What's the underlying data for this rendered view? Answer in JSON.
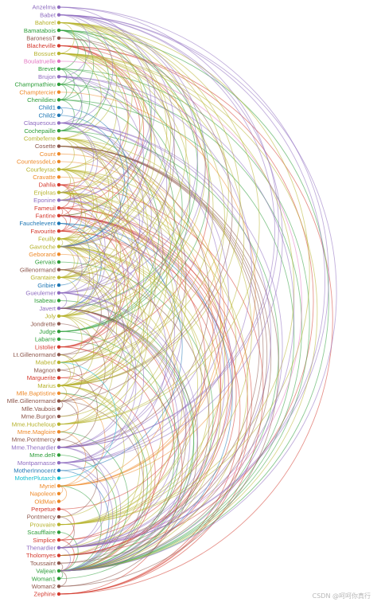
{
  "diagram": {
    "type": "arc-diagram",
    "group_colors": [
      "#8e6cc0",
      "#2e9e3a",
      "#b6b22c",
      "#d43a2e",
      "#ee8a2a",
      "#1f77b4",
      "#8c564b",
      "#e377c2",
      "#7f7f7f",
      "#17becf"
    ],
    "nodes": [
      {
        "name": "Anzelma",
        "group": 0
      },
      {
        "name": "Babet",
        "group": 0
      },
      {
        "name": "Bahorel",
        "group": 2
      },
      {
        "name": "Bamatabois",
        "group": 1
      },
      {
        "name": "BaronessT",
        "group": 6
      },
      {
        "name": "Blacheville",
        "group": 3
      },
      {
        "name": "Bossuet",
        "group": 2
      },
      {
        "name": "Boulatruelle",
        "group": 7
      },
      {
        "name": "Brevet",
        "group": 1
      },
      {
        "name": "Brujon",
        "group": 0
      },
      {
        "name": "Champmathieu",
        "group": 1
      },
      {
        "name": "Champtercier",
        "group": 4
      },
      {
        "name": "Chenildieu",
        "group": 1
      },
      {
        "name": "Child1",
        "group": 5
      },
      {
        "name": "Child2",
        "group": 5
      },
      {
        "name": "Claquesous",
        "group": 0
      },
      {
        "name": "Cochepaille",
        "group": 1
      },
      {
        "name": "Combeferre",
        "group": 2
      },
      {
        "name": "Cosette",
        "group": 6
      },
      {
        "name": "Count",
        "group": 4
      },
      {
        "name": "CountessdeLo",
        "group": 4
      },
      {
        "name": "Courfeyrac",
        "group": 2
      },
      {
        "name": "Cravatte",
        "group": 4
      },
      {
        "name": "Dahlia",
        "group": 3
      },
      {
        "name": "Enjolras",
        "group": 2
      },
      {
        "name": "Eponine",
        "group": 0
      },
      {
        "name": "Fameuil",
        "group": 3
      },
      {
        "name": "Fantine",
        "group": 3
      },
      {
        "name": "Fauchelevent",
        "group": 5
      },
      {
        "name": "Favourite",
        "group": 3
      },
      {
        "name": "Feuilly",
        "group": 2
      },
      {
        "name": "Gavroche",
        "group": 2
      },
      {
        "name": "Geborand",
        "group": 4
      },
      {
        "name": "Gervais",
        "group": 1
      },
      {
        "name": "Gillenormand",
        "group": 6
      },
      {
        "name": "Grantaire",
        "group": 2
      },
      {
        "name": "Gribier",
        "group": 5
      },
      {
        "name": "Gueulemer",
        "group": 0
      },
      {
        "name": "Isabeau",
        "group": 1
      },
      {
        "name": "Javert",
        "group": 0
      },
      {
        "name": "Joly",
        "group": 2
      },
      {
        "name": "Jondrette",
        "group": 6
      },
      {
        "name": "Judge",
        "group": 1
      },
      {
        "name": "Labarre",
        "group": 1
      },
      {
        "name": "Listolier",
        "group": 3
      },
      {
        "name": "Lt.Gillenormand",
        "group": 6
      },
      {
        "name": "Mabeuf",
        "group": 2
      },
      {
        "name": "Magnon",
        "group": 6
      },
      {
        "name": "Marguerite",
        "group": 3
      },
      {
        "name": "Marius",
        "group": 2
      },
      {
        "name": "Mlle.Baptistine",
        "group": 4
      },
      {
        "name": "Mlle.Gillenormand",
        "group": 6
      },
      {
        "name": "Mlle.Vaubois",
        "group": 6
      },
      {
        "name": "Mme.Burgon",
        "group": 6
      },
      {
        "name": "Mme.Hucheloup",
        "group": 2
      },
      {
        "name": "Mme.Magloire",
        "group": 4
      },
      {
        "name": "Mme.Pontmercy",
        "group": 6
      },
      {
        "name": "Mme.Thenardier",
        "group": 0
      },
      {
        "name": "Mme.deR",
        "group": 1
      },
      {
        "name": "Montparnasse",
        "group": 0
      },
      {
        "name": "MotherInnocent",
        "group": 5
      },
      {
        "name": "MotherPlutarch",
        "group": 9
      },
      {
        "name": "Myriel",
        "group": 4
      },
      {
        "name": "Napoleon",
        "group": 4
      },
      {
        "name": "OldMan",
        "group": 4
      },
      {
        "name": "Perpetue",
        "group": 3
      },
      {
        "name": "Pontmercy",
        "group": 6
      },
      {
        "name": "Prouvaire",
        "group": 2
      },
      {
        "name": "Scaufflaire",
        "group": 1
      },
      {
        "name": "Simplice",
        "group": 3
      },
      {
        "name": "Thenardier",
        "group": 0
      },
      {
        "name": "Tholomyes",
        "group": 3
      },
      {
        "name": "Toussaint",
        "group": 6
      },
      {
        "name": "Valjean",
        "group": 1
      },
      {
        "name": "Woman1",
        "group": 1
      },
      {
        "name": "Woman2",
        "group": 6
      },
      {
        "name": "Zephine",
        "group": 3
      }
    ],
    "links": [
      [
        "Napoleon",
        "Myriel"
      ],
      [
        "Mlle.Baptistine",
        "Myriel"
      ],
      [
        "Mme.Magloire",
        "Myriel"
      ],
      [
        "Mme.Magloire",
        "Mlle.Baptistine"
      ],
      [
        "CountessdeLo",
        "Myriel"
      ],
      [
        "Geborand",
        "Myriel"
      ],
      [
        "Champtercier",
        "Myriel"
      ],
      [
        "Cravatte",
        "Myriel"
      ],
      [
        "Count",
        "Myriel"
      ],
      [
        "OldMan",
        "Myriel"
      ],
      [
        "Labarre",
        "Valjean"
      ],
      [
        "Valjean",
        "Mme.Magloire"
      ],
      [
        "Valjean",
        "Mlle.Baptistine"
      ],
      [
        "Valjean",
        "Myriel"
      ],
      [
        "Marguerite",
        "Valjean"
      ],
      [
        "Mme.deR",
        "Valjean"
      ],
      [
        "Isabeau",
        "Valjean"
      ],
      [
        "Gervais",
        "Valjean"
      ],
      [
        "Listolier",
        "Tholomyes"
      ],
      [
        "Fameuil",
        "Tholomyes"
      ],
      [
        "Fameuil",
        "Listolier"
      ],
      [
        "Blacheville",
        "Tholomyes"
      ],
      [
        "Blacheville",
        "Listolier"
      ],
      [
        "Blacheville",
        "Fameuil"
      ],
      [
        "Favourite",
        "Tholomyes"
      ],
      [
        "Favourite",
        "Listolier"
      ],
      [
        "Favourite",
        "Fameuil"
      ],
      [
        "Favourite",
        "Blacheville"
      ],
      [
        "Dahlia",
        "Listolier"
      ],
      [
        "Dahlia",
        "Fameuil"
      ],
      [
        "Dahlia",
        "Blacheville"
      ],
      [
        "Dahlia",
        "Favourite"
      ],
      [
        "Zephine",
        "Listolier"
      ],
      [
        "Zephine",
        "Fameuil"
      ],
      [
        "Zephine",
        "Blacheville"
      ],
      [
        "Zephine",
        "Favourite"
      ],
      [
        "Zephine",
        "Dahlia"
      ],
      [
        "Fantine",
        "Tholomyes"
      ],
      [
        "Fantine",
        "Listolier"
      ],
      [
        "Fantine",
        "Fameuil"
      ],
      [
        "Fantine",
        "Blacheville"
      ],
      [
        "Fantine",
        "Favourite"
      ],
      [
        "Fantine",
        "Dahlia"
      ],
      [
        "Fantine",
        "Zephine"
      ],
      [
        "Fantine",
        "Marguerite"
      ],
      [
        "Fantine",
        "Valjean"
      ],
      [
        "Mme.Thenardier",
        "Fantine"
      ],
      [
        "Mme.Thenardier",
        "Valjean"
      ],
      [
        "Thenardier",
        "Mme.Thenardier"
      ],
      [
        "Thenardier",
        "Fantine"
      ],
      [
        "Thenardier",
        "Valjean"
      ],
      [
        "Cosette",
        "Mme.Thenardier"
      ],
      [
        "Cosette",
        "Valjean"
      ],
      [
        "Cosette",
        "Tholomyes"
      ],
      [
        "Cosette",
        "Thenardier"
      ],
      [
        "Javert",
        "Valjean"
      ],
      [
        "Javert",
        "Fantine"
      ],
      [
        "Javert",
        "Thenardier"
      ],
      [
        "Javert",
        "Mme.Thenardier"
      ],
      [
        "Javert",
        "Cosette"
      ],
      [
        "Fauchelevent",
        "Valjean"
      ],
      [
        "Fauchelevent",
        "Javert"
      ],
      [
        "Bamatabois",
        "Fantine"
      ],
      [
        "Bamatabois",
        "Javert"
      ],
      [
        "Bamatabois",
        "Valjean"
      ],
      [
        "Perpetue",
        "Fantine"
      ],
      [
        "Simplice",
        "Perpetue"
      ],
      [
        "Simplice",
        "Valjean"
      ],
      [
        "Simplice",
        "Fantine"
      ],
      [
        "Simplice",
        "Javert"
      ],
      [
        "Scaufflaire",
        "Valjean"
      ],
      [
        "Woman1",
        "Valjean"
      ],
      [
        "Woman1",
        "Javert"
      ],
      [
        "Judge",
        "Valjean"
      ],
      [
        "Judge",
        "Bamatabois"
      ],
      [
        "Champmathieu",
        "Valjean"
      ],
      [
        "Champmathieu",
        "Judge"
      ],
      [
        "Champmathieu",
        "Bamatabois"
      ],
      [
        "Brevet",
        "Judge"
      ],
      [
        "Brevet",
        "Champmathieu"
      ],
      [
        "Brevet",
        "Valjean"
      ],
      [
        "Brevet",
        "Bamatabois"
      ],
      [
        "Chenildieu",
        "Judge"
      ],
      [
        "Chenildieu",
        "Champmathieu"
      ],
      [
        "Chenildieu",
        "Brevet"
      ],
      [
        "Chenildieu",
        "Valjean"
      ],
      [
        "Chenildieu",
        "Bamatabois"
      ],
      [
        "Cochepaille",
        "Judge"
      ],
      [
        "Cochepaille",
        "Champmathieu"
      ],
      [
        "Cochepaille",
        "Brevet"
      ],
      [
        "Cochepaille",
        "Chenildieu"
      ],
      [
        "Cochepaille",
        "Valjean"
      ],
      [
        "Cochepaille",
        "Bamatabois"
      ],
      [
        "Pontmercy",
        "Thenardier"
      ],
      [
        "Boulatruelle",
        "Thenardier"
      ],
      [
        "Eponine",
        "Mme.Thenardier"
      ],
      [
        "Eponine",
        "Thenardier"
      ],
      [
        "Anzelma",
        "Eponine"
      ],
      [
        "Anzelma",
        "Thenardier"
      ],
      [
        "Anzelma",
        "Mme.Thenardier"
      ],
      [
        "Woman2",
        "Valjean"
      ],
      [
        "Woman2",
        "Cosette"
      ],
      [
        "Woman2",
        "Javert"
      ],
      [
        "MotherInnocent",
        "Fauchelevent"
      ],
      [
        "MotherInnocent",
        "Valjean"
      ],
      [
        "Gribier",
        "Fauchelevent"
      ],
      [
        "Mme.Burgon",
        "Jondrette"
      ],
      [
        "Gavroche",
        "Mme.Burgon"
      ],
      [
        "Gavroche",
        "Thenardier"
      ],
      [
        "Gavroche",
        "Javert"
      ],
      [
        "Gavroche",
        "Valjean"
      ],
      [
        "Gillenormand",
        "Cosette"
      ],
      [
        "Gillenormand",
        "Valjean"
      ],
      [
        "Magnon",
        "Gillenormand"
      ],
      [
        "Magnon",
        "Mme.Thenardier"
      ],
      [
        "Mlle.Gillenormand",
        "Gillenormand"
      ],
      [
        "Mlle.Gillenormand",
        "Cosette"
      ],
      [
        "Mlle.Gillenormand",
        "Valjean"
      ],
      [
        "Mme.Pontmercy",
        "Mlle.Gillenormand"
      ],
      [
        "Mme.Pontmercy",
        "Pontmercy"
      ],
      [
        "Mlle.Vaubois",
        "Mlle.Gillenormand"
      ],
      [
        "Lt.Gillenormand",
        "Mlle.Gillenormand"
      ],
      [
        "Lt.Gillenormand",
        "Gillenormand"
      ],
      [
        "Lt.Gillenormand",
        "Cosette"
      ],
      [
        "Marius",
        "Mlle.Gillenormand"
      ],
      [
        "Marius",
        "Gillenormand"
      ],
      [
        "Marius",
        "Pontmercy"
      ],
      [
        "Marius",
        "Lt.Gillenormand"
      ],
      [
        "Marius",
        "Cosette"
      ],
      [
        "Marius",
        "Valjean"
      ],
      [
        "Marius",
        "Tholomyes"
      ],
      [
        "Marius",
        "Thenardier"
      ],
      [
        "Marius",
        "Eponine"
      ],
      [
        "Marius",
        "Gavroche"
      ],
      [
        "BaronessT",
        "Gillenormand"
      ],
      [
        "BaronessT",
        "Marius"
      ],
      [
        "Mabeuf",
        "Marius"
      ],
      [
        "Mabeuf",
        "Eponine"
      ],
      [
        "Mabeuf",
        "Gavroche"
      ],
      [
        "Enjolras",
        "Marius"
      ],
      [
        "Enjolras",
        "Gavroche"
      ],
      [
        "Enjolras",
        "Javert"
      ],
      [
        "Enjolras",
        "Mabeuf"
      ],
      [
        "Enjolras",
        "Valjean"
      ],
      [
        "Combeferre",
        "Enjolras"
      ],
      [
        "Combeferre",
        "Marius"
      ],
      [
        "Combeferre",
        "Gavroche"
      ],
      [
        "Combeferre",
        "Mabeuf"
      ],
      [
        "Prouvaire",
        "Gavroche"
      ],
      [
        "Prouvaire",
        "Enjolras"
      ],
      [
        "Prouvaire",
        "Combeferre"
      ],
      [
        "Feuilly",
        "Gavroche"
      ],
      [
        "Feuilly",
        "Enjolras"
      ],
      [
        "Feuilly",
        "Prouvaire"
      ],
      [
        "Feuilly",
        "Combeferre"
      ],
      [
        "Feuilly",
        "Mabeuf"
      ],
      [
        "Feuilly",
        "Marius"
      ],
      [
        "Courfeyrac",
        "Marius"
      ],
      [
        "Courfeyrac",
        "Enjolras"
      ],
      [
        "Courfeyrac",
        "Combeferre"
      ],
      [
        "Courfeyrac",
        "Gavroche"
      ],
      [
        "Courfeyrac",
        "Mabeuf"
      ],
      [
        "Courfeyrac",
        "Eponine"
      ],
      [
        "Courfeyrac",
        "Feuilly"
      ],
      [
        "Courfeyrac",
        "Prouvaire"
      ],
      [
        "Bahorel",
        "Combeferre"
      ],
      [
        "Bahorel",
        "Gavroche"
      ],
      [
        "Bahorel",
        "Courfeyrac"
      ],
      [
        "Bahorel",
        "Mabeuf"
      ],
      [
        "Bahorel",
        "Enjolras"
      ],
      [
        "Bahorel",
        "Feuilly"
      ],
      [
        "Bahorel",
        "Prouvaire"
      ],
      [
        "Bahorel",
        "Marius"
      ],
      [
        "Bossuet",
        "Marius"
      ],
      [
        "Bossuet",
        "Courfeyrac"
      ],
      [
        "Bossuet",
        "Gavroche"
      ],
      [
        "Bossuet",
        "Bahorel"
      ],
      [
        "Bossuet",
        "Enjolras"
      ],
      [
        "Bossuet",
        "Feuilly"
      ],
      [
        "Bossuet",
        "Prouvaire"
      ],
      [
        "Bossuet",
        "Combeferre"
      ],
      [
        "Bossuet",
        "Mabeuf"
      ],
      [
        "Bossuet",
        "Valjean"
      ],
      [
        "Joly",
        "Bahorel"
      ],
      [
        "Joly",
        "Bossuet"
      ],
      [
        "Joly",
        "Gavroche"
      ],
      [
        "Joly",
        "Courfeyrac"
      ],
      [
        "Joly",
        "Enjolras"
      ],
      [
        "Joly",
        "Feuilly"
      ],
      [
        "Joly",
        "Prouvaire"
      ],
      [
        "Joly",
        "Combeferre"
      ],
      [
        "Joly",
        "Mabeuf"
      ],
      [
        "Joly",
        "Marius"
      ],
      [
        "Grantaire",
        "Bossuet"
      ],
      [
        "Grantaire",
        "Enjolras"
      ],
      [
        "Grantaire",
        "Combeferre"
      ],
      [
        "Grantaire",
        "Courfeyrac"
      ],
      [
        "Grantaire",
        "Joly"
      ],
      [
        "Grantaire",
        "Gavroche"
      ],
      [
        "Grantaire",
        "Bahorel"
      ],
      [
        "Grantaire",
        "Feuilly"
      ],
      [
        "Grantaire",
        "Prouvaire"
      ],
      [
        "MotherPlutarch",
        "Mabeuf"
      ],
      [
        "Gueulemer",
        "Thenardier"
      ],
      [
        "Gueulemer",
        "Valjean"
      ],
      [
        "Gueulemer",
        "Mme.Thenardier"
      ],
      [
        "Gueulemer",
        "Javert"
      ],
      [
        "Gueulemer",
        "Gavroche"
      ],
      [
        "Gueulemer",
        "Eponine"
      ],
      [
        "Babet",
        "Thenardier"
      ],
      [
        "Babet",
        "Gueulemer"
      ],
      [
        "Babet",
        "Valjean"
      ],
      [
        "Babet",
        "Mme.Thenardier"
      ],
      [
        "Babet",
        "Javert"
      ],
      [
        "Babet",
        "Gavroche"
      ],
      [
        "Babet",
        "Eponine"
      ],
      [
        "Claquesous",
        "Thenardier"
      ],
      [
        "Claquesous",
        "Babet"
      ],
      [
        "Claquesous",
        "Gueulemer"
      ],
      [
        "Claquesous",
        "Valjean"
      ],
      [
        "Claquesous",
        "Mme.Thenardier"
      ],
      [
        "Claquesous",
        "Javert"
      ],
      [
        "Claquesous",
        "Eponine"
      ],
      [
        "Claquesous",
        "Enjolras"
      ],
      [
        "Montparnasse",
        "Javert"
      ],
      [
        "Montparnasse",
        "Babet"
      ],
      [
        "Montparnasse",
        "Gueulemer"
      ],
      [
        "Montparnasse",
        "Claquesous"
      ],
      [
        "Montparnasse",
        "Valjean"
      ],
      [
        "Montparnasse",
        "Gavroche"
      ],
      [
        "Montparnasse",
        "Thenardier"
      ],
      [
        "Toussaint",
        "Cosette"
      ],
      [
        "Toussaint",
        "Javert"
      ],
      [
        "Toussaint",
        "Valjean"
      ],
      [
        "Child1",
        "Gavroche"
      ],
      [
        "Child2",
        "Gavroche"
      ],
      [
        "Child2",
        "Child1"
      ],
      [
        "Brujon",
        "Babet"
      ],
      [
        "Brujon",
        "Gueulemer"
      ],
      [
        "Brujon",
        "Thenardier"
      ],
      [
        "Brujon",
        "Gavroche"
      ],
      [
        "Brujon",
        "Eponine"
      ],
      [
        "Brujon",
        "Claquesous"
      ],
      [
        "Brujon",
        "Montparnasse"
      ],
      [
        "Mme.Hucheloup",
        "Bossuet"
      ],
      [
        "Mme.Hucheloup",
        "Joly"
      ],
      [
        "Mme.Hucheloup",
        "Grantaire"
      ],
      [
        "Mme.Hucheloup",
        "Bahorel"
      ],
      [
        "Mme.Hucheloup",
        "Courfeyrac"
      ],
      [
        "Mme.Hucheloup",
        "Gavroche"
      ],
      [
        "Mme.Hucheloup",
        "Enjolras"
      ]
    ]
  },
  "watermark": "CSDN @呵呵你真行"
}
